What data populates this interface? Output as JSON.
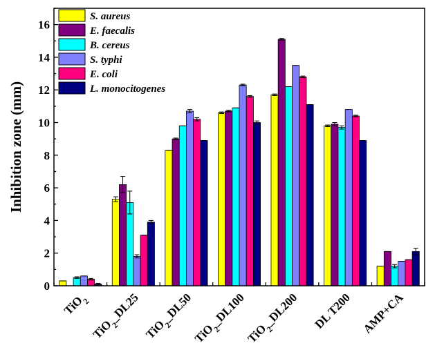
{
  "chart_data": {
    "type": "bar",
    "title": "",
    "ylabel": "Inhibition zone (mm)",
    "xlabel": "",
    "ylim": [
      0,
      17
    ],
    "yticks": [
      0,
      2,
      4,
      6,
      8,
      10,
      12,
      14,
      16
    ],
    "categories": [
      {
        "base": "TiO",
        "sub": "2",
        "tail": ""
      },
      {
        "base": "TiO",
        "sub": "2",
        "tail": "_DL25"
      },
      {
        "base": "TiO",
        "sub": "2",
        "tail": "_DL50"
      },
      {
        "base": "TiO",
        "sub": "2",
        "tail": "_DL100"
      },
      {
        "base": "TiO",
        "sub": "2",
        "tail": "_DL200"
      },
      {
        "base": "DL T200",
        "sub": "",
        "tail": ""
      },
      {
        "base": "AMP+CA",
        "sub": "",
        "tail": ""
      }
    ],
    "legend_position": "top-left",
    "grid": false,
    "series": [
      {
        "name": "S. aureus",
        "color": "#ffff00",
        "values": [
          0.3,
          5.3,
          8.3,
          10.6,
          11.7,
          9.8,
          1.2
        ],
        "errors": [
          0.0,
          0.15,
          0.0,
          0.05,
          0.05,
          0.05,
          0.0
        ]
      },
      {
        "name": "E. faecalis",
        "color": "#800080",
        "values": [
          0.0,
          6.2,
          9.0,
          10.7,
          15.1,
          9.9,
          2.1
        ],
        "errors": [
          0.0,
          0.5,
          0.05,
          0.05,
          0.05,
          0.1,
          0.0
        ]
      },
      {
        "name": "B. cereus",
        "color": "#00ffff",
        "values": [
          0.5,
          5.1,
          9.8,
          10.9,
          12.2,
          9.7,
          1.2
        ],
        "errors": [
          0.05,
          0.7,
          0.0,
          0.0,
          0.0,
          0.1,
          0.1
        ]
      },
      {
        "name": "S. typhi",
        "color": "#8080ff",
        "values": [
          0.6,
          1.8,
          10.7,
          12.3,
          13.5,
          10.8,
          1.5
        ],
        "errors": [
          0.0,
          0.1,
          0.1,
          0.05,
          0.0,
          0.0,
          0.0
        ]
      },
      {
        "name": "E. coli",
        "color": "#ff0080",
        "values": [
          0.4,
          3.1,
          10.2,
          11.6,
          12.8,
          10.4,
          1.6
        ],
        "errors": [
          0.05,
          0.0,
          0.1,
          0.05,
          0.05,
          0.05,
          0.0
        ]
      },
      {
        "name": "L. monocitogenes",
        "color": "#000080",
        "values": [
          0.1,
          3.9,
          8.9,
          10.0,
          11.1,
          8.9,
          2.1
        ],
        "errors": [
          0.05,
          0.1,
          0.0,
          0.1,
          0.0,
          0.0,
          0.2
        ]
      }
    ]
  }
}
